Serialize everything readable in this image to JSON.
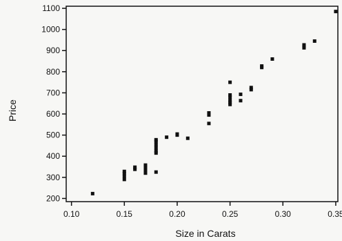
{
  "chart_data": {
    "type": "scatter",
    "title": "",
    "xlabel": "Size in Carats",
    "ylabel": "Price",
    "xlim": [
      0.095,
      0.352
    ],
    "ylim": [
      185,
      1110
    ],
    "xticks": [
      0.1,
      0.15,
      0.2,
      0.25,
      0.3,
      0.35
    ],
    "xtick_labels": [
      "0.10",
      "0.15",
      "0.20",
      "0.25",
      "0.30",
      "0.35"
    ],
    "yticks": [
      200,
      300,
      400,
      500,
      600,
      700,
      800,
      900,
      1000,
      1100
    ],
    "ytick_labels": [
      "200",
      "300",
      "400",
      "500",
      "600",
      "700",
      "800",
      "900",
      "1000",
      "1100"
    ],
    "grid": false,
    "legend": "none",
    "colors": {
      "marker": "#111111",
      "axis": "#111111",
      "background": "#f7f7f5"
    },
    "points": [
      [
        0.12,
        223
      ],
      [
        0.15,
        290
      ],
      [
        0.15,
        305
      ],
      [
        0.15,
        318
      ],
      [
        0.15,
        328
      ],
      [
        0.16,
        338
      ],
      [
        0.16,
        348
      ],
      [
        0.17,
        320
      ],
      [
        0.17,
        335
      ],
      [
        0.17,
        350
      ],
      [
        0.17,
        358
      ],
      [
        0.18,
        325
      ],
      [
        0.18,
        415
      ],
      [
        0.18,
        425
      ],
      [
        0.18,
        440
      ],
      [
        0.18,
        455
      ],
      [
        0.18,
        470
      ],
      [
        0.18,
        478
      ],
      [
        0.19,
        490
      ],
      [
        0.2,
        500
      ],
      [
        0.2,
        505
      ],
      [
        0.21,
        485
      ],
      [
        0.23,
        555
      ],
      [
        0.23,
        595
      ],
      [
        0.23,
        605
      ],
      [
        0.25,
        645
      ],
      [
        0.25,
        655
      ],
      [
        0.25,
        665
      ],
      [
        0.25,
        680
      ],
      [
        0.25,
        690
      ],
      [
        0.25,
        750
      ],
      [
        0.26,
        663
      ],
      [
        0.26,
        693
      ],
      [
        0.27,
        715
      ],
      [
        0.27,
        725
      ],
      [
        0.28,
        820
      ],
      [
        0.28,
        827
      ],
      [
        0.29,
        860
      ],
      [
        0.32,
        913
      ],
      [
        0.32,
        920
      ],
      [
        0.32,
        927
      ],
      [
        0.33,
        945
      ],
      [
        0.35,
        1085
      ]
    ]
  }
}
